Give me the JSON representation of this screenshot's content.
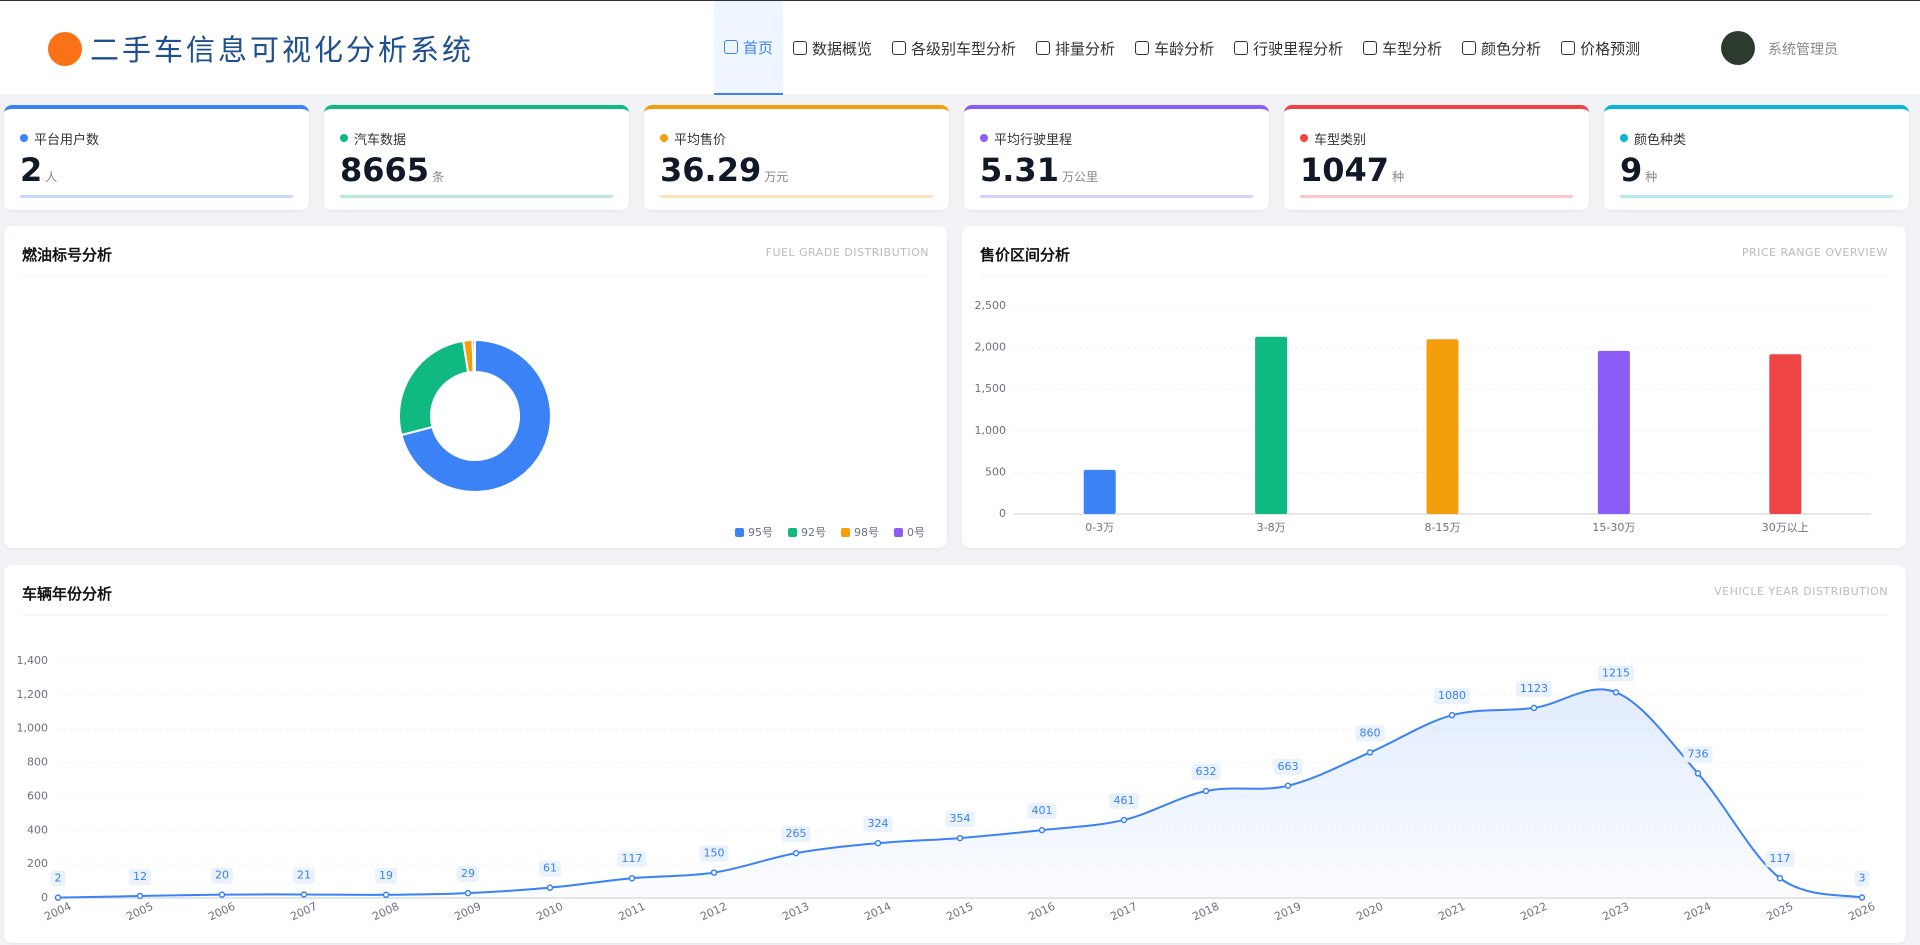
{
  "header": {
    "title": "二手车信息可视化分析系统",
    "user": "系统管理员"
  },
  "nav": [
    "首页",
    "数据概览",
    "各级别车型分析",
    "排量分析",
    "车龄分析",
    "行驶里程分析",
    "车型分析",
    "颜色分析",
    "价格预测"
  ],
  "stats": [
    {
      "label": "平台用户数",
      "value": 2,
      "unit": "人",
      "color": "#3b82f6"
    },
    {
      "label": "汽车数据",
      "value": 8665,
      "unit": "条",
      "color": "#10b981"
    },
    {
      "label": "平均售价",
      "value": 36.29,
      "unit": "万元",
      "color": "#f59e0b"
    },
    {
      "label": "平均行驶里程",
      "value": 5.31,
      "unit": "万公里",
      "color": "#8b5cf6"
    },
    {
      "label": "车型类别",
      "value": 1047,
      "unit": "种",
      "color": "#ef4444"
    },
    {
      "label": "颜色种类",
      "value": 9,
      "unit": "种",
      "color": "#06b6d4"
    }
  ],
  "chart_data": [
    {
      "type": "pie",
      "title": "燃油标号分析",
      "subtitle": "FUEL GRADE DISTRIBUTION",
      "categories": [
        "95号",
        "92号",
        "98号",
        "0号"
      ],
      "values": [
        6150,
        2300,
        170,
        45
      ],
      "colors": [
        "#3b82f6",
        "#10b981",
        "#f59e0b",
        "#8b5cf6"
      ],
      "legend": "top-right"
    },
    {
      "type": "bar",
      "title": "售价区间分析",
      "subtitle": "PRICE RANGE OVERVIEW",
      "categories": [
        "0-3万",
        "3-8万",
        "8-15万",
        "15-30万",
        "30万以上"
      ],
      "values": [
        530,
        2130,
        2100,
        1960,
        1920
      ],
      "colors": [
        "#3b82f6",
        "#10b981",
        "#f59e0b",
        "#8b5cf6",
        "#ef4444"
      ],
      "ylim": [
        0,
        2500
      ],
      "yticks": [
        0,
        500,
        {
          "value": 1000,
          "label": "1,000"
        },
        {
          "value": 1500,
          "label": "1,500"
        },
        {
          "value": 2000,
          "label": "2,000"
        },
        {
          "value": 2500,
          "label": "2,500"
        }
      ],
      "grid": true
    },
    {
      "type": "line",
      "title": "车辆年份分析",
      "subtitle": "VEHICLE YEAR DISTRIBUTION",
      "x": [
        2004,
        2005,
        2006,
        2007,
        2008,
        2009,
        2010,
        2011,
        2012,
        2013,
        2014,
        2015,
        2016,
        2017,
        2018,
        2019,
        2020,
        2021,
        2022,
        2023,
        2024,
        2025,
        2026
      ],
      "values": [
        2,
        12,
        20,
        21,
        19,
        29,
        61,
        117,
        150,
        265,
        324,
        354,
        401,
        461,
        632,
        663,
        860,
        1080,
        1123,
        1215,
        736,
        117,
        3
      ],
      "color": "#3b82f6",
      "xlim": [
        2004,
        2026
      ],
      "ylim": [
        0,
        1400
      ],
      "yticks": [
        0,
        200,
        400,
        600,
        800,
        {
          "value": 1000,
          "label": "1,000"
        },
        {
          "value": 1200,
          "label": "1,200"
        },
        {
          "value": 1400,
          "label": "1,400"
        }
      ],
      "grid": true,
      "area": true
    }
  ]
}
